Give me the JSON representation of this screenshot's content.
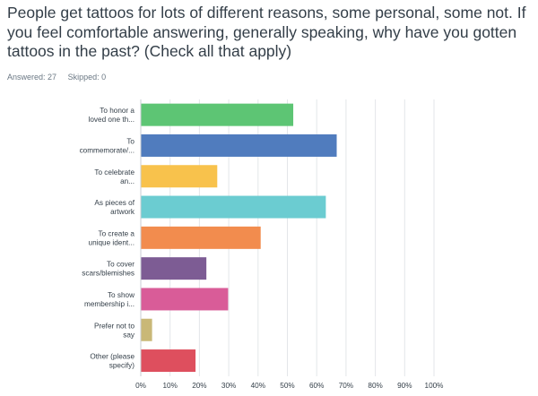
{
  "question": {
    "title": "People get tattoos for lots of different reasons, some personal, some not. If you feel comfortable answering, generally speaking, why have you gotten tattoos in the past? (Check all that apply)",
    "answered": "Answered: 27",
    "skipped": "Skipped: 0"
  },
  "chart_data": {
    "type": "bar",
    "orientation": "horizontal",
    "title": "",
    "xlabel": "",
    "ylabel": "",
    "xlim": [
      0,
      100
    ],
    "grid": true,
    "categories": [
      [
        "To honor a",
        "loved one th..."
      ],
      [
        "To",
        "commemorate/..."
      ],
      [
        "To celebrate",
        "an..."
      ],
      [
        "As pieces of",
        "artwork"
      ],
      [
        "To create a",
        "unique ident..."
      ],
      [
        "To cover",
        "scars/blemishes"
      ],
      [
        "To show",
        "membership i..."
      ],
      [
        "Prefer not to",
        "say"
      ],
      [
        "Other (please",
        "specify)"
      ]
    ],
    "values": [
      51.85,
      66.67,
      25.93,
      62.96,
      40.74,
      22.22,
      29.63,
      3.7,
      18.52
    ],
    "colors": [
      "#5dc574",
      "#507cbe",
      "#f8c24c",
      "#6bccd1",
      "#f28c4e",
      "#7d5c94",
      "#d95c98",
      "#c9b877",
      "#de4f5e"
    ],
    "ticks": [
      "0%",
      "10%",
      "20%",
      "30%",
      "40%",
      "50%",
      "60%",
      "70%",
      "80%",
      "90%",
      "100%"
    ]
  }
}
